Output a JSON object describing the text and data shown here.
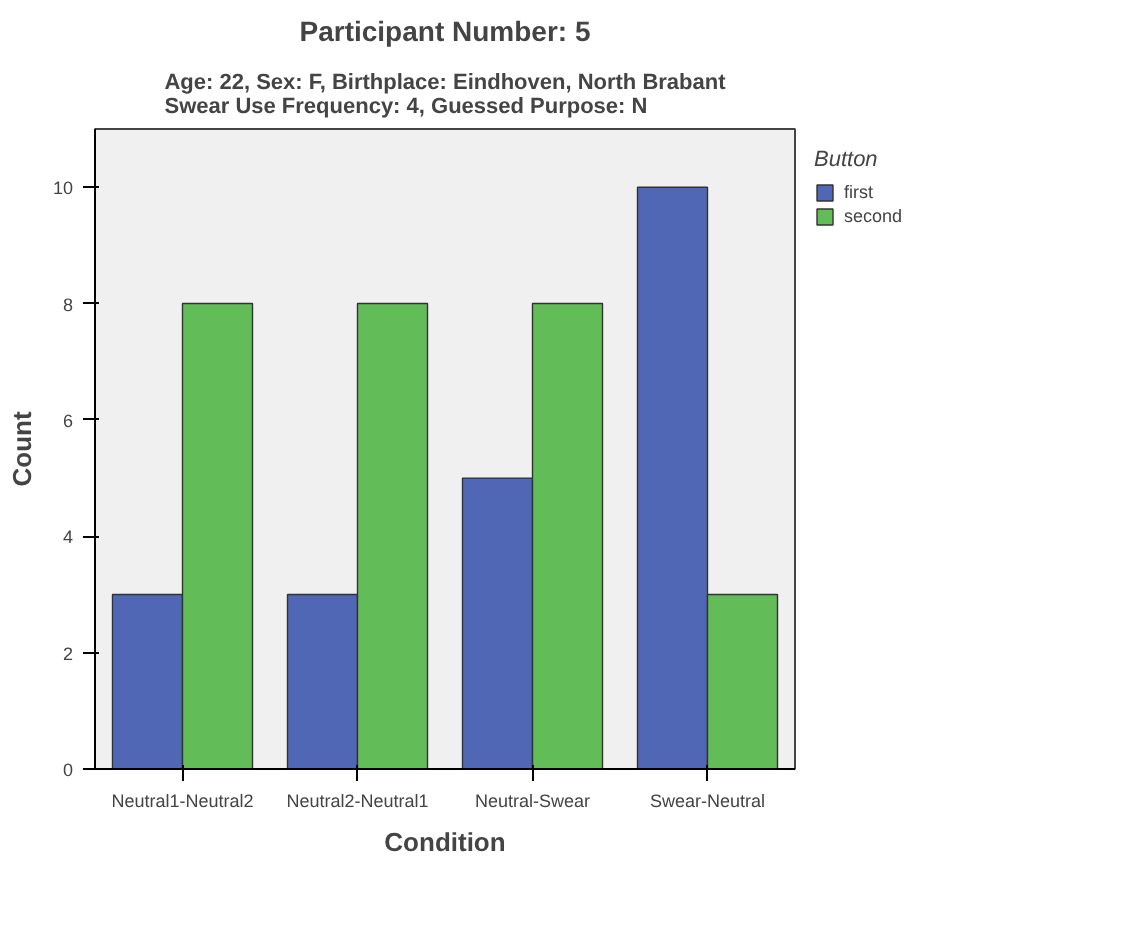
{
  "chart_data": {
    "type": "bar",
    "title": "Participant Number: 5",
    "subtitle": "Age: 22, Sex: F, Birthplace: Eindhoven, North Brabant\nSwear Use Frequency: 4, Guessed Purpose: N",
    "xlabel": "Condition",
    "ylabel": "Count",
    "legend_title": "Button",
    "categories": [
      "Neutral1-Neutral2",
      "Neutral2-Neutral1",
      "Neutral-Swear",
      "Swear-Neutral"
    ],
    "series": [
      {
        "name": "first",
        "color": "#4f67b5",
        "values": [
          3,
          3,
          5,
          10
        ]
      },
      {
        "name": "second",
        "color": "#62bd59",
        "values": [
          8,
          8,
          8,
          3
        ]
      }
    ],
    "ylim": [
      0,
      11
    ],
    "yticks": [
      0,
      2,
      4,
      6,
      8,
      10
    ],
    "grid": false,
    "legend": "top right"
  }
}
